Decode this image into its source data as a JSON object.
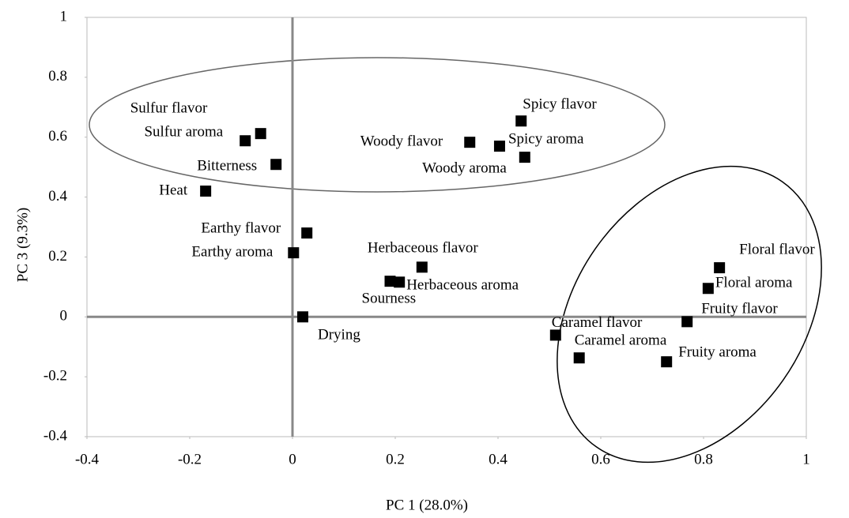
{
  "chart_data": {
    "type": "scatter",
    "xlabel": "PC 1 (28.0%)",
    "ylabel": "PC 3 (9.3%)",
    "color": "#000000",
    "labels": [
      "Sulfur flavor",
      "Sulfur aroma",
      "Bitterness",
      "Heat",
      "Earthy flavor",
      "Earthy aroma",
      "Drying",
      "Herbaceous flavor",
      "Herbaceous aroma",
      "Sourness",
      "Woody flavor",
      "Spicy aroma",
      "Spicy flavor",
      "Woody aroma",
      "Caramel flavor",
      "Caramel aroma",
      "Fruity aroma",
      "Fruity flavor",
      "Floral aroma",
      "Floral flavor"
    ],
    "x": [
      -0.062,
      -0.092,
      -0.032,
      -0.169,
      0.028,
      0.002,
      0.02,
      0.252,
      0.208,
      0.19,
      0.345,
      0.403,
      0.445,
      0.452,
      0.512,
      0.558,
      0.728,
      0.768,
      0.809,
      0.831
    ],
    "y": [
      0.612,
      0.588,
      0.509,
      0.42,
      0.28,
      0.214,
      0,
      0.166,
      0.116,
      0.119,
      0.583,
      0.57,
      0.654,
      0.533,
      -0.061,
      -0.137,
      -0.15,
      -0.016,
      0.095,
      0.164
    ],
    "xlim": [
      -0.4,
      1
    ],
    "ylim": [
      -0.4,
      1
    ],
    "xticks": [
      -0.4,
      -0.2,
      0,
      0.2,
      0.4,
      0.6,
      0.8,
      1
    ],
    "yticks": [
      -0.4,
      -0.2,
      0,
      0.2,
      0.4,
      0.6,
      0.8,
      1
    ]
  }
}
